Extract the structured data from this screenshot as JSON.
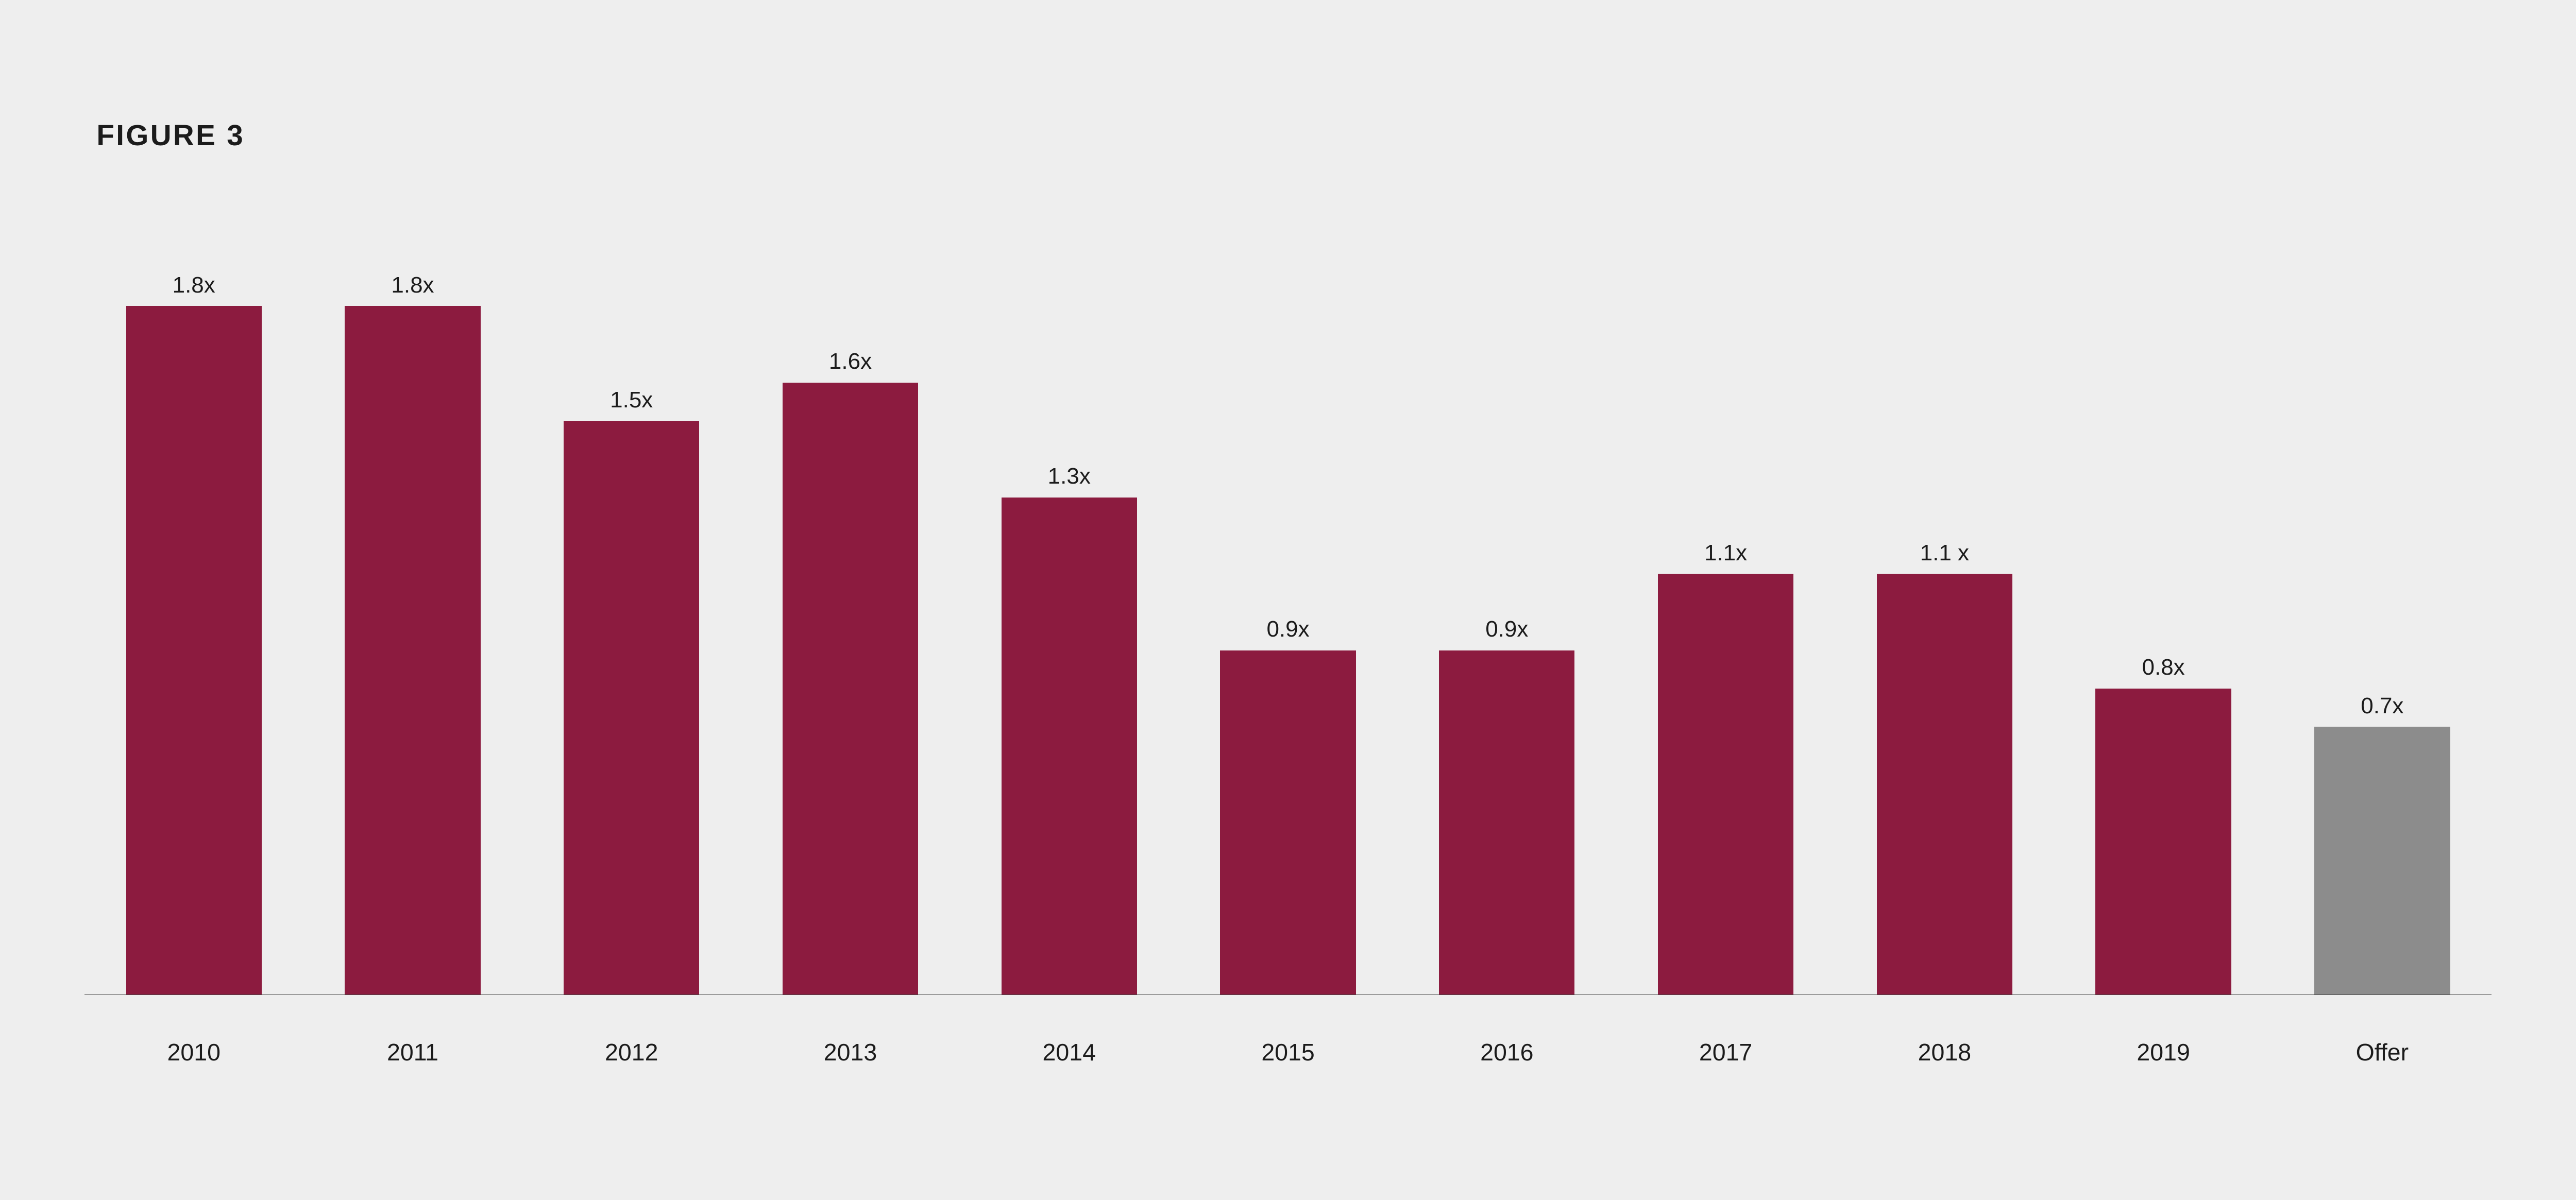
{
  "figure": {
    "title": "FIGURE 3",
    "title_fontsize_pct_w": 1.13,
    "value_label_fontsize_pct_w": 0.88,
    "xaxis_label_fontsize_pct_w": 0.93,
    "background_color": "#eeeeee",
    "text_color": "#1b1b1b",
    "axis_line_color": "#444444",
    "chart": {
      "type": "bar",
      "y_max_for_scale": 2.0,
      "bar_width_pct_of_slot": 62,
      "bars": [
        {
          "category": "2010",
          "value": 1.8,
          "label": "1.8x",
          "color": "#8c1b3f"
        },
        {
          "category": "2011",
          "value": 1.8,
          "label": "1.8x",
          "color": "#8c1b3f"
        },
        {
          "category": "2012",
          "value": 1.5,
          "label": "1.5x",
          "color": "#8c1b3f"
        },
        {
          "category": "2013",
          "value": 1.6,
          "label": "1.6x",
          "color": "#8c1b3f"
        },
        {
          "category": "2014",
          "value": 1.3,
          "label": "1.3x",
          "color": "#8c1b3f"
        },
        {
          "category": "2015",
          "value": 0.9,
          "label": "0.9x",
          "color": "#8c1b3f"
        },
        {
          "category": "2016",
          "value": 0.9,
          "label": "0.9x",
          "color": "#8c1b3f"
        },
        {
          "category": "2017",
          "value": 1.1,
          "label": "1.1x",
          "color": "#8c1b3f"
        },
        {
          "category": "2018",
          "value": 1.1,
          "label": "1.1 x",
          "color": "#8c1b3f"
        },
        {
          "category": "2019",
          "value": 0.8,
          "label": "0.8x",
          "color": "#8c1b3f"
        },
        {
          "category": "Offer",
          "value": 0.7,
          "label": "0.7x",
          "color": "#8c8c8c"
        }
      ]
    }
  }
}
